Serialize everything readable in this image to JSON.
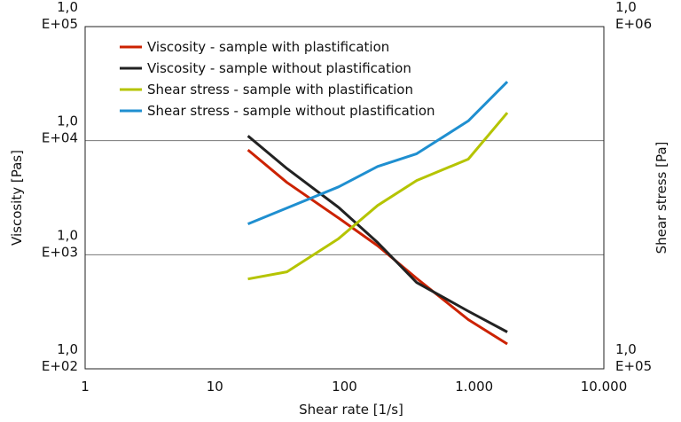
{
  "chart_data": {
    "type": "line",
    "xlabel": "Shear rate [1/s]",
    "ylabel": "Viscosity [Pas]",
    "y2label": "Shear stress [Pa]",
    "x_scale": "log",
    "y_scale": "log",
    "y2_scale": "log",
    "xlim": [
      1,
      10000
    ],
    "ylim": [
      100,
      100000
    ],
    "y2lim": [
      100000,
      1000000
    ],
    "x_ticks": [
      "1",
      "10",
      "100",
      "1.000",
      "10.000"
    ],
    "y_ticks": [
      {
        "line1": "1,0",
        "line2": "E+02"
      },
      {
        "line1": "1,0",
        "line2": "E+03"
      },
      {
        "line1": "1,0",
        "line2": "E+04"
      },
      {
        "line1": "1,0",
        "line2": "E+05"
      }
    ],
    "y2_ticks": [
      {
        "line1": "1,0",
        "line2": "E+05"
      },
      {
        "line1": "1,0",
        "line2": "E+06"
      }
    ],
    "grid": "horizontal",
    "legend_position": "top-left",
    "series": [
      {
        "name": "Viscosity - sample with plastification",
        "axis": "left",
        "color": "#cc2200",
        "x": [
          18,
          36,
          90,
          180,
          360,
          900,
          1800
        ],
        "y": [
          8300,
          4300,
          2100,
          1200,
          620,
          270,
          165
        ]
      },
      {
        "name": "Viscosity - sample without plastification",
        "axis": "left",
        "color": "#222222",
        "x": [
          18,
          36,
          90,
          180,
          360,
          900,
          1800
        ],
        "y": [
          11000,
          5700,
          2600,
          1280,
          570,
          320,
          210
        ]
      },
      {
        "name": "Shear stress - sample with plastification",
        "axis": "right",
        "color": "#b5c400",
        "x": [
          18,
          36,
          90,
          180,
          360,
          900,
          1800
        ],
        "y": [
          183000,
          192000,
          240000,
          300000,
          355000,
          410000,
          560000
        ]
      },
      {
        "name": "Shear stress - sample without plastification",
        "axis": "right",
        "color": "#1f8fd0",
        "x": [
          18,
          36,
          90,
          180,
          360,
          900,
          1800
        ],
        "y": [
          265000,
          295000,
          340000,
          390000,
          425000,
          530000,
          690000
        ]
      }
    ]
  }
}
